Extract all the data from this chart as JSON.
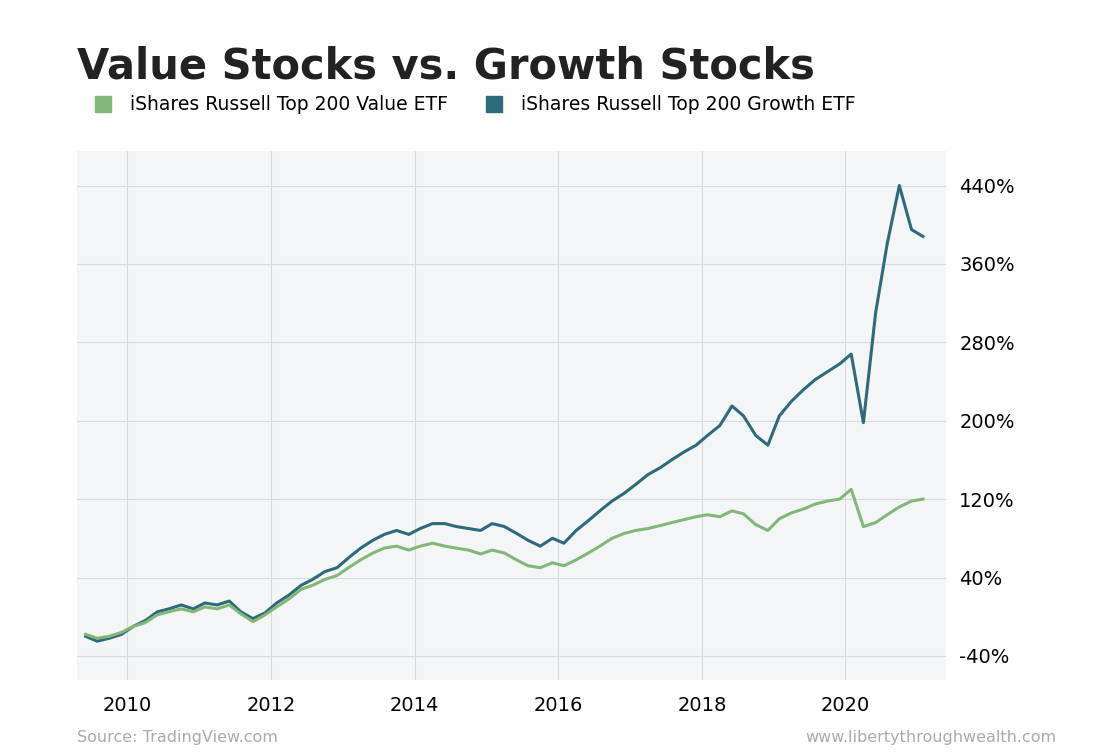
{
  "title": "Value Stocks vs. Growth Stocks",
  "legend_value": "iShares Russell Top 200 Value ETF",
  "legend_growth": "iShares Russell Top 200 Growth ETF",
  "source_left": "Source: TradingView.com",
  "source_right": "www.libertythroughwealth.com",
  "value_color": "#82b877",
  "growth_color": "#2d6b7a",
  "background_color": "#f4f5f7",
  "grid_color": "#d8dade",
  "yticks": [
    -40,
    40,
    120,
    200,
    280,
    360,
    440
  ],
  "ylim": [
    -65,
    475
  ],
  "xlim": [
    2009.3,
    2021.4
  ],
  "xtick_positions": [
    2010,
    2012,
    2014,
    2016,
    2018,
    2020
  ],
  "xtick_labels": [
    "2010",
    "2012",
    "2014",
    "2016",
    "2018",
    "2020"
  ],
  "title_fontsize": 30,
  "legend_fontsize": 13.5,
  "tick_fontsize": 14,
  "source_fontsize": 11.5,
  "value_data": {
    "x": [
      2009.42,
      2009.58,
      2009.75,
      2009.92,
      2010.08,
      2010.25,
      2010.42,
      2010.58,
      2010.75,
      2010.92,
      2011.08,
      2011.25,
      2011.42,
      2011.58,
      2011.75,
      2011.92,
      2012.08,
      2012.25,
      2012.42,
      2012.58,
      2012.75,
      2012.92,
      2013.08,
      2013.25,
      2013.42,
      2013.58,
      2013.75,
      2013.92,
      2014.08,
      2014.25,
      2014.42,
      2014.58,
      2014.75,
      2014.92,
      2015.08,
      2015.25,
      2015.42,
      2015.58,
      2015.75,
      2015.92,
      2016.08,
      2016.25,
      2016.42,
      2016.58,
      2016.75,
      2016.92,
      2017.08,
      2017.25,
      2017.42,
      2017.58,
      2017.75,
      2017.92,
      2018.08,
      2018.25,
      2018.42,
      2018.58,
      2018.75,
      2018.92,
      2019.08,
      2019.25,
      2019.42,
      2019.58,
      2019.75,
      2019.92,
      2020.08,
      2020.25,
      2020.42,
      2020.58,
      2020.75,
      2020.92,
      2021.08
    ],
    "y": [
      -18,
      -22,
      -20,
      -16,
      -10,
      -6,
      2,
      5,
      8,
      5,
      10,
      8,
      12,
      3,
      -5,
      2,
      10,
      18,
      28,
      32,
      38,
      42,
      50,
      58,
      65,
      70,
      72,
      68,
      72,
      75,
      72,
      70,
      68,
      64,
      68,
      65,
      58,
      52,
      50,
      55,
      52,
      58,
      65,
      72,
      80,
      85,
      88,
      90,
      93,
      96,
      99,
      102,
      104,
      102,
      108,
      105,
      94,
      88,
      100,
      106,
      110,
      115,
      118,
      120,
      130,
      92,
      96,
      104,
      112,
      118,
      120
    ]
  },
  "growth_data": {
    "x": [
      2009.42,
      2009.58,
      2009.75,
      2009.92,
      2010.08,
      2010.25,
      2010.42,
      2010.58,
      2010.75,
      2010.92,
      2011.08,
      2011.25,
      2011.42,
      2011.58,
      2011.75,
      2011.92,
      2012.08,
      2012.25,
      2012.42,
      2012.58,
      2012.75,
      2012.92,
      2013.08,
      2013.25,
      2013.42,
      2013.58,
      2013.75,
      2013.92,
      2014.08,
      2014.25,
      2014.42,
      2014.58,
      2014.75,
      2014.92,
      2015.08,
      2015.25,
      2015.42,
      2015.58,
      2015.75,
      2015.92,
      2016.08,
      2016.25,
      2016.42,
      2016.58,
      2016.75,
      2016.92,
      2017.08,
      2017.25,
      2017.42,
      2017.58,
      2017.75,
      2017.92,
      2018.08,
      2018.25,
      2018.42,
      2018.58,
      2018.75,
      2018.92,
      2019.08,
      2019.25,
      2019.42,
      2019.58,
      2019.75,
      2019.92,
      2020.08,
      2020.25,
      2020.42,
      2020.58,
      2020.75,
      2020.92,
      2021.08
    ],
    "y": [
      -20,
      -25,
      -22,
      -18,
      -10,
      -4,
      5,
      8,
      12,
      8,
      14,
      12,
      16,
      5,
      -2,
      4,
      14,
      22,
      32,
      38,
      46,
      50,
      60,
      70,
      78,
      84,
      88,
      84,
      90,
      95,
      95,
      92,
      90,
      88,
      95,
      92,
      85,
      78,
      72,
      80,
      75,
      88,
      98,
      108,
      118,
      126,
      135,
      145,
      152,
      160,
      168,
      175,
      185,
      195,
      215,
      205,
      185,
      175,
      205,
      220,
      232,
      242,
      250,
      258,
      268,
      198,
      310,
      380,
      440,
      395,
      388
    ]
  }
}
